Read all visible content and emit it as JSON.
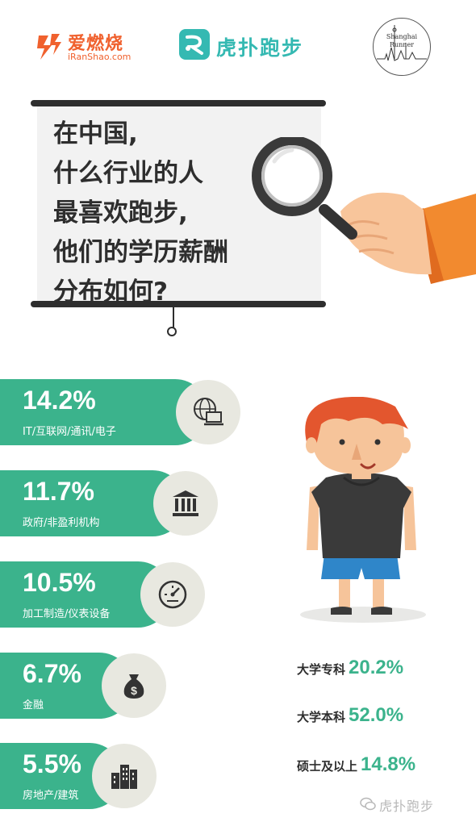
{
  "header": {
    "left_logo": {
      "brand": "爱燃烧",
      "sub": "iRanShao.com"
    },
    "mid_logo": {
      "brand": "虎扑跑步"
    },
    "right_logo": {
      "line1": "Shanghai",
      "line2": "Runner"
    }
  },
  "board": {
    "lines": [
      "在中国,",
      "什么行业的人",
      "最喜欢跑步,",
      "他们的学历薪酬",
      "分布如何?"
    ]
  },
  "industries": [
    {
      "percent": "14.2%",
      "label": "IT/互联网/通讯/电子",
      "icon": "globe-laptop-icon"
    },
    {
      "percent": "11.7%",
      "label": "政府/非盈利机构",
      "icon": "government-building-icon"
    },
    {
      "percent": "10.5%",
      "label": "加工制造/仪表设备",
      "icon": "gauge-icon"
    },
    {
      "percent": "6.7%",
      "label": "金融",
      "icon": "money-bag-icon"
    },
    {
      "percent": "5.5%",
      "label": "房地产/建筑",
      "icon": "city-buildings-icon"
    }
  ],
  "education": [
    {
      "label": "大学专科",
      "value": "20.2%"
    },
    {
      "label": "大学本科",
      "value": "52.0%"
    },
    {
      "label": "硕士及以上",
      "value": "14.8%"
    }
  ],
  "watermark": "虎扑跑步",
  "colors": {
    "green": "#3bb38c",
    "orange": "#f0612e",
    "teal": "#35b9b2",
    "dark": "#2e2e2e"
  }
}
